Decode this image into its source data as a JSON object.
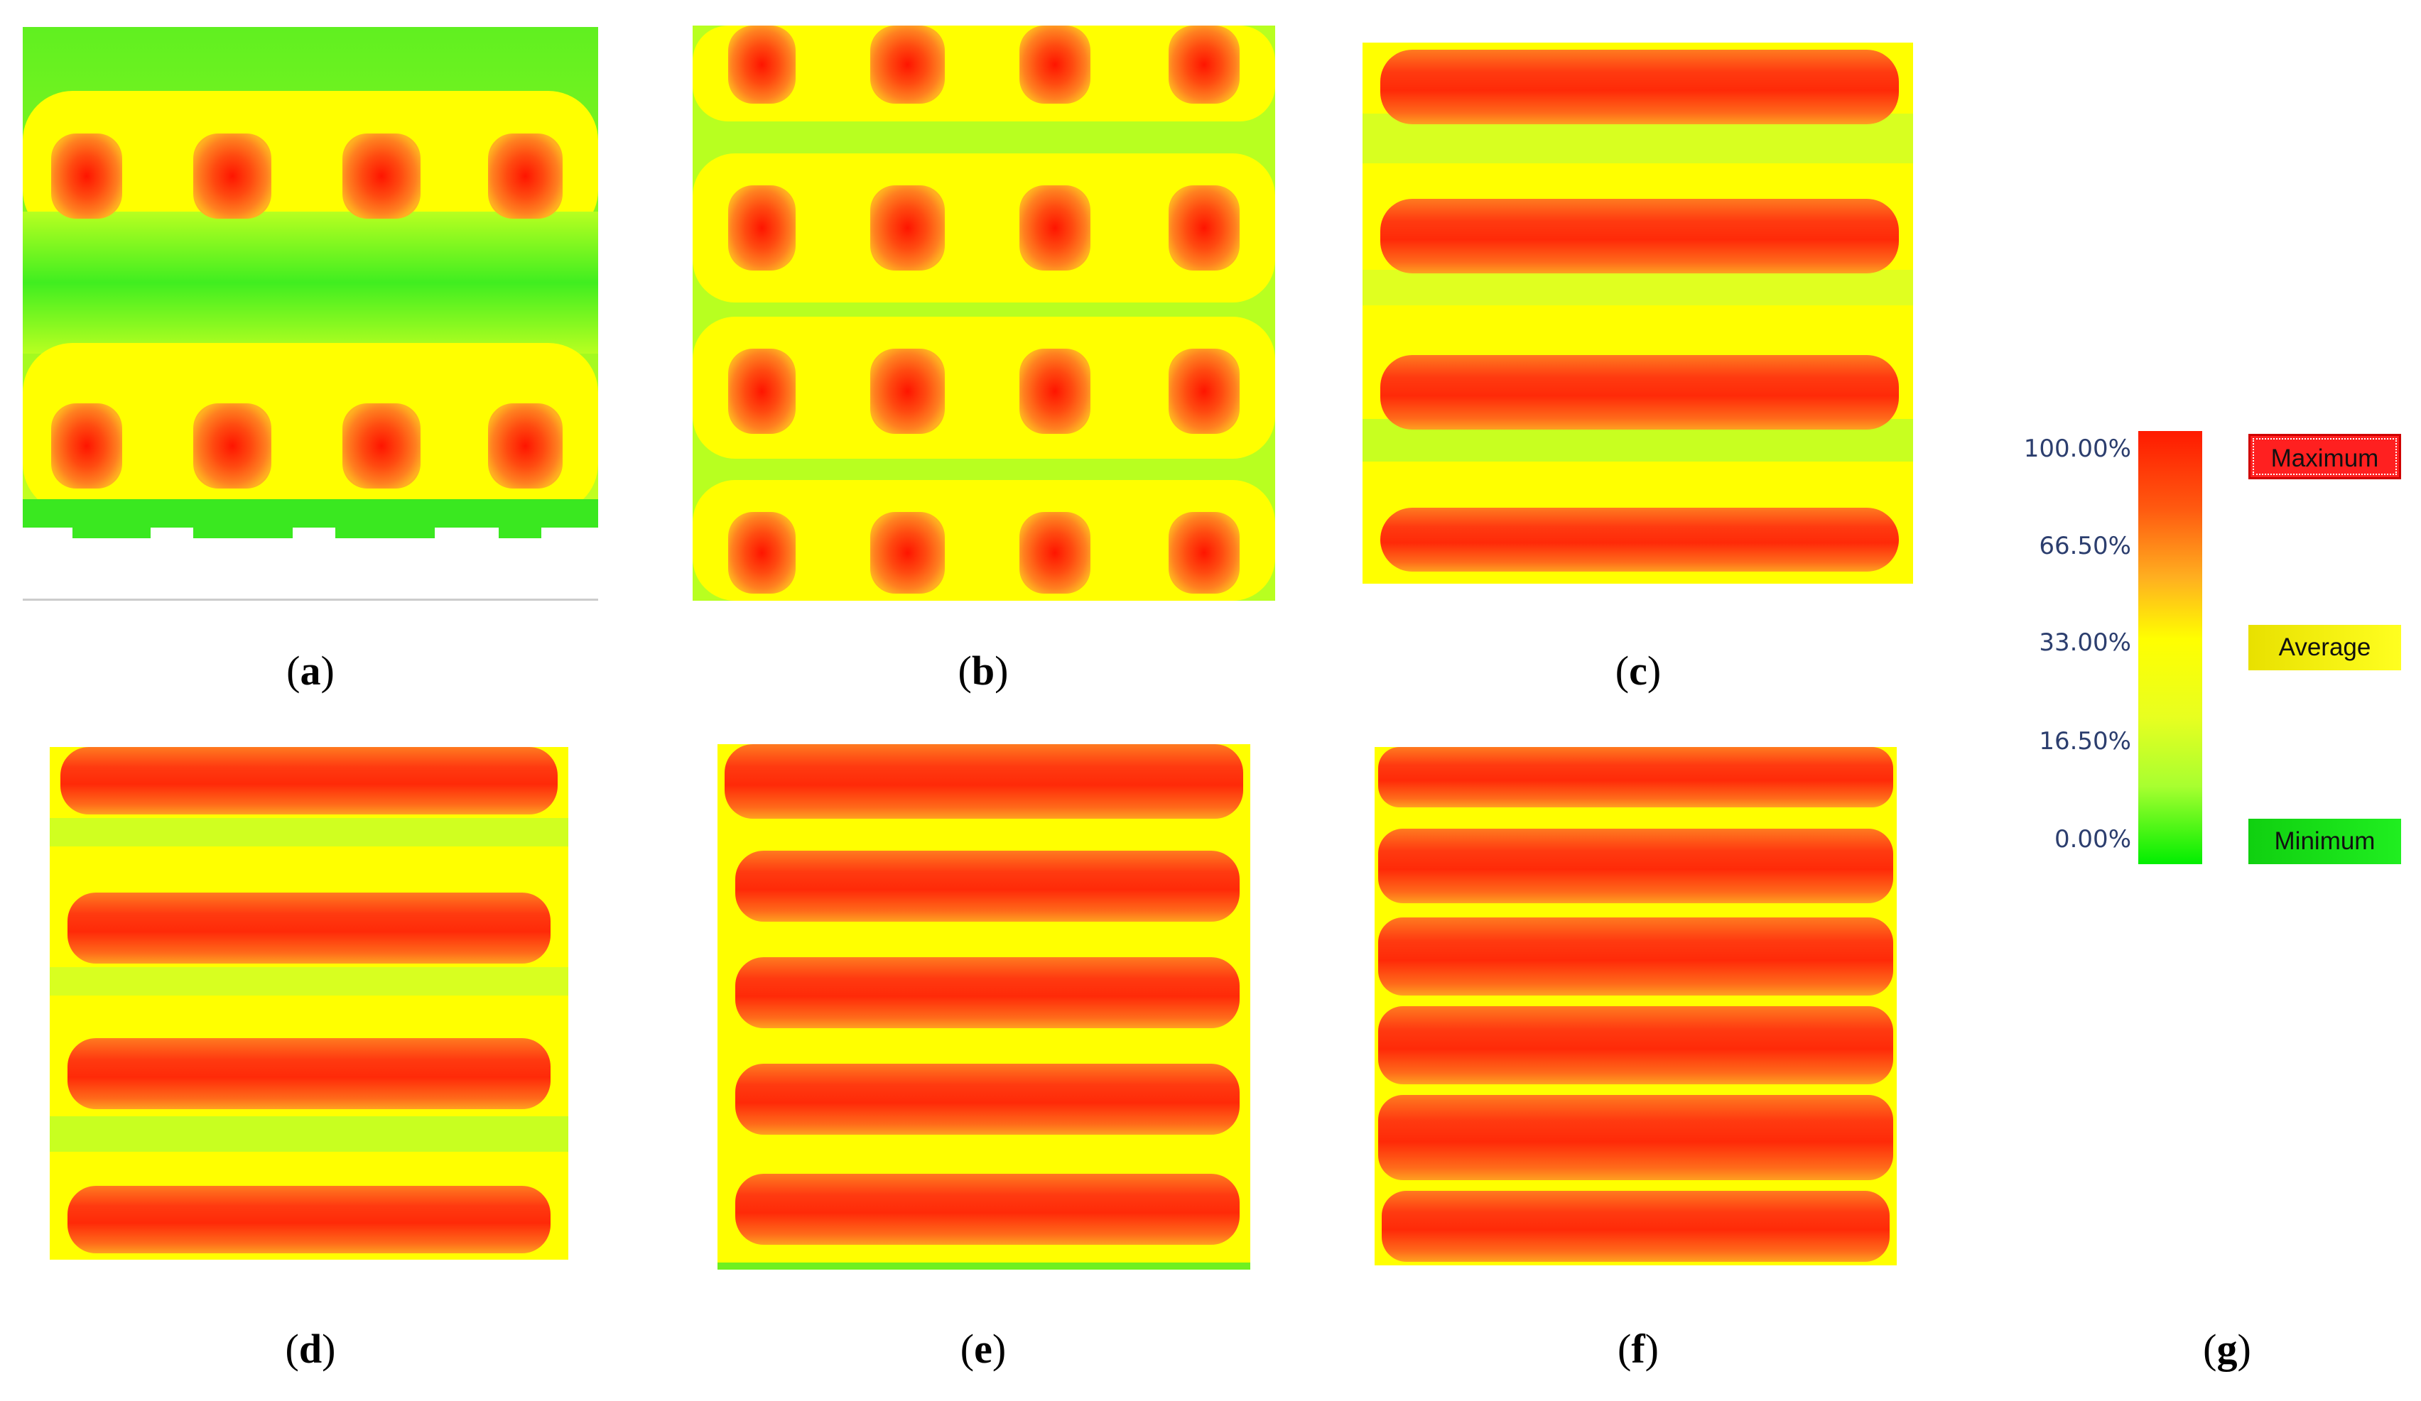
{
  "figure": {
    "panels": [
      {
        "id": "a",
        "caption": "a"
      },
      {
        "id": "b",
        "caption": "b"
      },
      {
        "id": "c",
        "caption": "c"
      },
      {
        "id": "d",
        "caption": "d"
      },
      {
        "id": "e",
        "caption": "e"
      },
      {
        "id": "f",
        "caption": "f"
      },
      {
        "id": "g",
        "caption": "g"
      }
    ]
  },
  "legend": {
    "ticks": [
      "100.00%",
      "66.50%",
      "33.00%",
      "16.50%",
      "0.00%"
    ],
    "boxes": {
      "maximum": "Maximum",
      "average": "Average",
      "minimum": "Minimum"
    },
    "colors": {
      "maximum": "#ff1a00",
      "average": "#ffff00",
      "minimum": "#00ee00"
    }
  }
}
